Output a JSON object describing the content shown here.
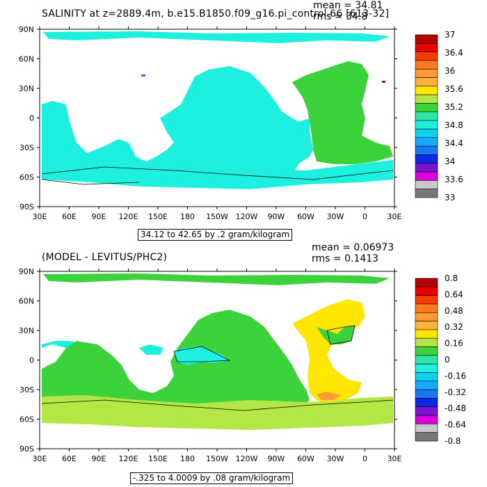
{
  "top_panel": {
    "title": "SALINITY at z=2889.4m, b.e15.B1850.f09_g16.pi_control.66 [613-32]",
    "mean_text": "mean = 34.81",
    "rms_text": "rms = 34.8",
    "contour_info": "34.12 to 42.65 by .2 gram/kilogram",
    "colorbar": {
      "colors": [
        "#b40000",
        "#e60000",
        "#ff3a00",
        "#ff7a1e",
        "#ff9a33",
        "#ffb33a",
        "#ffe600",
        "#b4e646",
        "#3cd23c",
        "#2ee6a6",
        "#1ef0e0",
        "#0cd2f0",
        "#14aaff",
        "#1978f0",
        "#0a28e6",
        "#7814d2",
        "#dc00dc",
        "#c8c8c8",
        "#787878"
      ],
      "labels": [
        "37",
        "36.4",
        "36",
        "35.6",
        "35.2",
        "34.8",
        "34.4",
        "34",
        "33.6",
        "33"
      ]
    }
  },
  "bottom_panel": {
    "title": "(MODEL - LEVITUS/PHC2)",
    "mean_text": "mean = 0.06973",
    "rms_text": "rms = 0.1413",
    "contour_info": "-.325 to 4.0009 by .08 gram/kilogram",
    "colorbar": {
      "colors": [
        "#b40000",
        "#e60000",
        "#ff3a00",
        "#ff7a1e",
        "#ff9a33",
        "#ffb33a",
        "#ffe600",
        "#b4e646",
        "#3cd23c",
        "#2ee6a6",
        "#1ef0e0",
        "#0cd2f0",
        "#14aaff",
        "#1978f0",
        "#0a28e6",
        "#7814d2",
        "#dc00dc",
        "#c8c8c8",
        "#787878"
      ],
      "labels": [
        "0.8",
        "0.64",
        "0.48",
        "0.32",
        "0.16",
        "0",
        "-0.16",
        "-0.32",
        "-0.48",
        "-0.64",
        "-0.8"
      ]
    }
  },
  "axes": {
    "lat_labels": [
      "90N",
      "60N",
      "30N",
      "0",
      "30S",
      "60S",
      "90S"
    ],
    "lon_labels": [
      "30E",
      "60E",
      "90E",
      "120E",
      "150E",
      "180",
      "150W",
      "120W",
      "90W",
      "60W",
      "30W",
      "0",
      "30E"
    ]
  }
}
